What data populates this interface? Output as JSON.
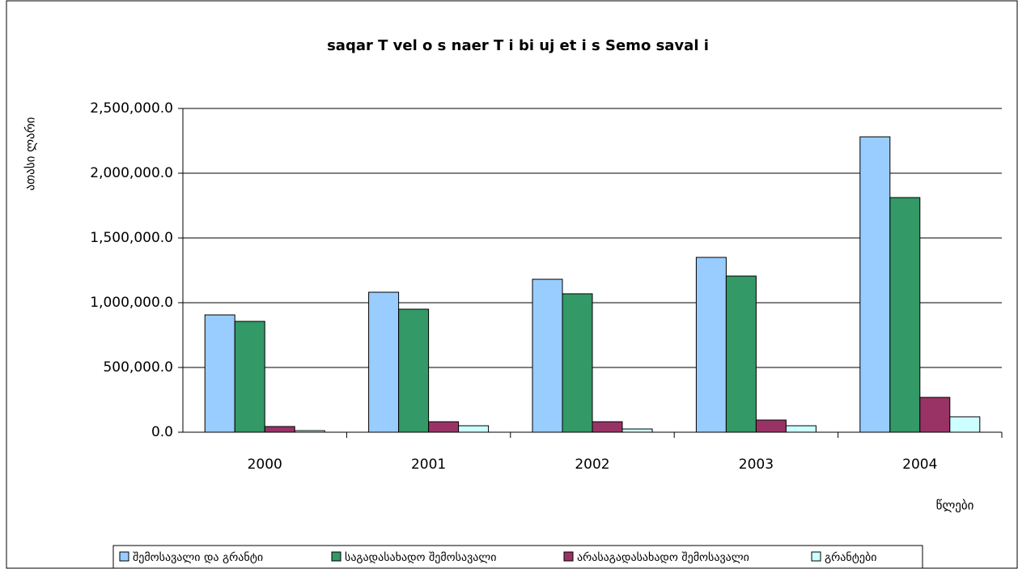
{
  "chart_data": {
    "type": "bar",
    "title": "saqar T vel o s naer T i  bi uj et i s  Semo saval i",
    "y_label": "ათასი ლარი",
    "x_label": "წლები",
    "categories": [
      "2000",
      "2001",
      "2002",
      "2003",
      "2004"
    ],
    "series": [
      {
        "name": "შემოსავალი და გრანტი",
        "color": "#99ccff",
        "values": [
          906000,
          1081000,
          1181000,
          1350000,
          2281000
        ]
      },
      {
        "name": "საგადასახადო შემოსავალი",
        "color": "#339966",
        "values": [
          856000,
          950000,
          1069000,
          1206000,
          1812000
        ]
      },
      {
        "name": "არასაგადასახადო შემოსავალი",
        "color": "#993366",
        "values": [
          44000,
          81000,
          81000,
          94000,
          269000
        ]
      },
      {
        "name": "გრანტები",
        "color": "#ccffff",
        "values": [
          12000,
          50000,
          25000,
          50000,
          119000
        ]
      }
    ],
    "ylim": [
      0,
      2500000
    ],
    "yticks": [
      {
        "value": 0,
        "label": "0.0"
      },
      {
        "value": 500000,
        "label": "500,000.0"
      },
      {
        "value": 1000000,
        "label": "1,000,000.0"
      },
      {
        "value": 1500000,
        "label": "1,500,000.0"
      },
      {
        "value": 2000000,
        "label": "2,000,000.0"
      },
      {
        "value": 2500000,
        "label": "2,500,000.0"
      }
    ],
    "grid": true,
    "legend": "bottom"
  }
}
